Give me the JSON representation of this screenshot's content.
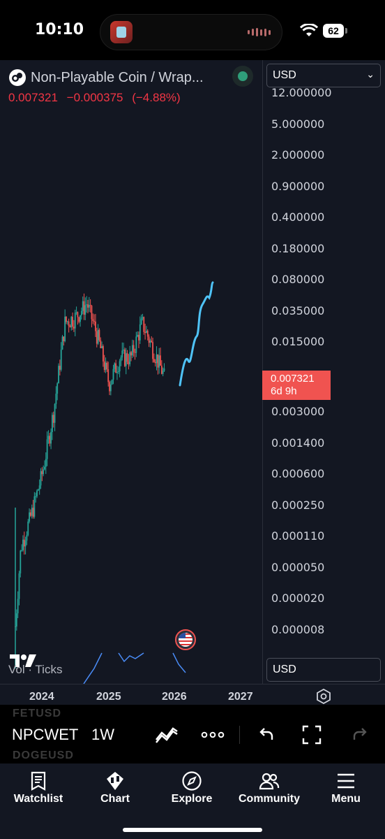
{
  "status_bar": {
    "time": "10:10",
    "battery": "62"
  },
  "chart": {
    "title": "Non-Playable Coin / Wrap...",
    "last_price": "0.007321",
    "change": "−0.000375",
    "change_pct": "(−4.88%)",
    "currency_top": "USD",
    "currency_bottom": "USD",
    "price_tag": {
      "price": "0.007321",
      "countdown": "6d 9h"
    },
    "volume_label": "Vol · Ticks",
    "accent_up": "#26a69a",
    "accent_down": "#f05350",
    "projection_color": "#4fc3f7",
    "price_axis": [
      "12.000000",
      "5.000000",
      "2.000000",
      "0.900000",
      "0.400000",
      "0.180000",
      "0.080000",
      "0.035000",
      "0.015000",
      "0.003000",
      "0.001400",
      "0.000600",
      "0.000250",
      "0.000110",
      "0.000050",
      "0.000020",
      "0.000008"
    ],
    "time_axis": [
      "2024",
      "2025",
      "2026",
      "2027"
    ]
  },
  "chart_data": {
    "type": "candlestick",
    "title": "Non-Playable Coin / Wrap...",
    "yscale": "log",
    "x": [
      "2024",
      "2025",
      "2026",
      "2027"
    ],
    "candles_approx": [
      {
        "date": "2023-10",
        "close": 1e-05
      },
      {
        "date": "2023-11",
        "close": 8e-05
      },
      {
        "date": "2024-01",
        "close": 0.0002
      },
      {
        "date": "2024-03",
        "close": 0.0006
      },
      {
        "date": "2024-05",
        "close": 0.003
      },
      {
        "date": "2024-07",
        "close": 0.03
      },
      {
        "date": "2024-09",
        "close": 0.035
      },
      {
        "date": "2024-11",
        "close": 0.05
      },
      {
        "date": "2025-01",
        "close": 0.02
      },
      {
        "date": "2025-03",
        "close": 0.006
      },
      {
        "date": "2025-05",
        "close": 0.012
      },
      {
        "date": "2025-07",
        "close": 0.012
      },
      {
        "date": "2025-09",
        "close": 0.03
      },
      {
        "date": "2025-11",
        "close": 0.015
      },
      {
        "date": "2026-01",
        "close": 0.0073
      }
    ],
    "projection": [
      0.0045,
      0.009,
      0.006,
      0.02,
      0.012,
      0.04,
      0.085
    ],
    "last_price": 0.007321
  },
  "toolbar": {
    "symbol": "NPCWETH",
    "interval": "1W",
    "ghost_above": "FETUSD",
    "ghost_below": "DOGEUSD"
  },
  "tabs": [
    {
      "label": "Watchlist",
      "icon": "watchlist-icon"
    },
    {
      "label": "Chart",
      "icon": "chart-icon"
    },
    {
      "label": "Explore",
      "icon": "compass-icon"
    },
    {
      "label": "Community",
      "icon": "community-icon"
    },
    {
      "label": "Menu",
      "icon": "menu-icon"
    }
  ]
}
